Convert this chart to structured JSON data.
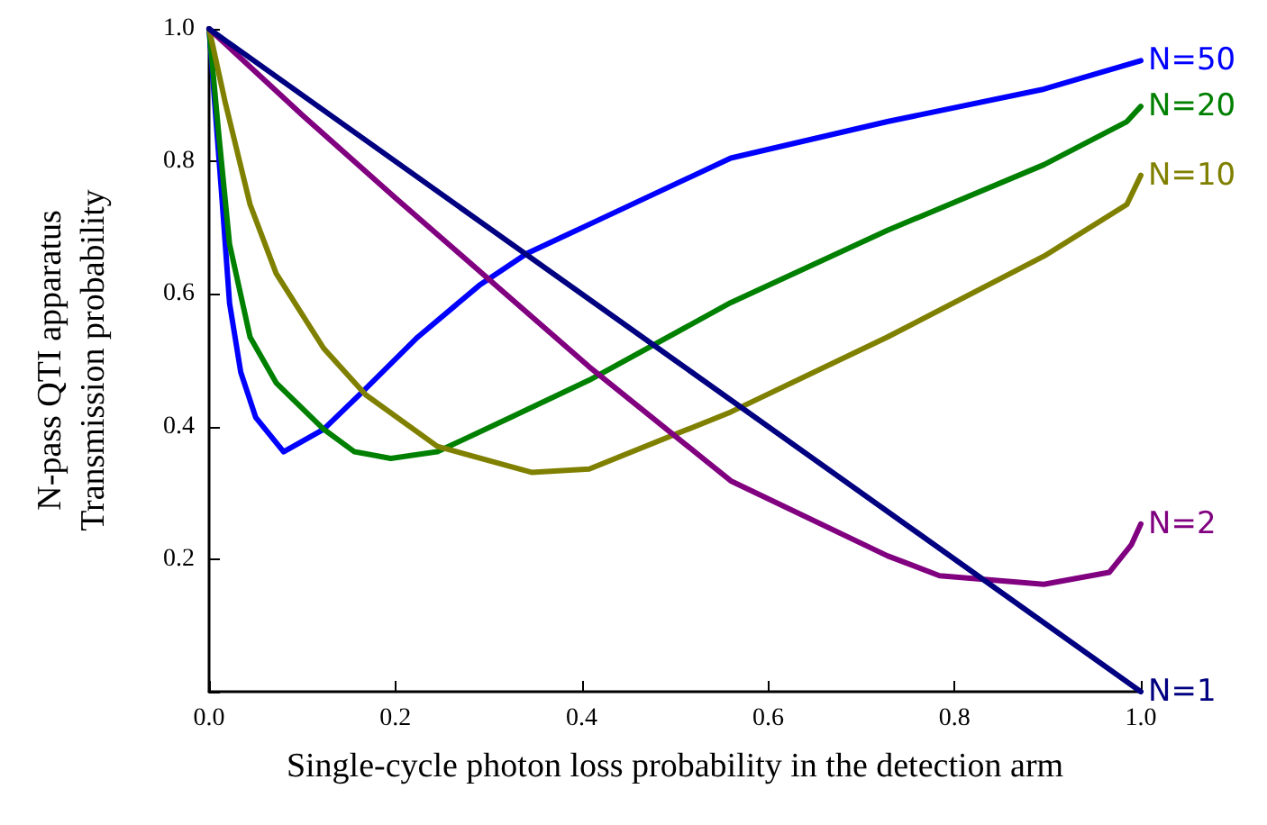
{
  "chart_data": {
    "type": "line",
    "xlabel": "Single-cycle photon loss probability in the detection arm",
    "ylabel": "N-pass QTI apparatus\nTransmission probability",
    "xlim": [
      0,
      1
    ],
    "ylim": [
      0,
      1
    ],
    "xticks": [
      {
        "value": 0,
        "label": "0.0"
      },
      0.2,
      0.4,
      0.6,
      0.8,
      {
        "value": 1,
        "label": "1.0"
      }
    ],
    "yticks": [
      {
        "value": 0,
        "label": null
      },
      0.2,
      0.4,
      0.6,
      0.8,
      {
        "value": 1,
        "label": "1.0"
      }
    ],
    "grid": false,
    "legend": false,
    "marker": "none",
    "line_style": "solid",
    "series": [
      {
        "name": "N=50",
        "color": "#0000ff",
        "x": [
          0,
          0.013,
          0.022,
          0.034,
          0.05,
          0.08,
          0.123,
          0.168,
          0.224,
          0.29,
          0.341,
          0.408,
          0.56,
          0.728,
          0.896,
          1
        ],
        "values": [
          1,
          0.76,
          0.586,
          0.482,
          0.414,
          0.362,
          0.396,
          0.457,
          0.535,
          0.613,
          0.661,
          0.705,
          0.805,
          0.86,
          0.909,
          0.952
        ]
      },
      {
        "name": "N=20",
        "color": "#008000",
        "x": [
          0,
          0.01,
          0.022,
          0.044,
          0.072,
          0.123,
          0.156,
          0.195,
          0.245,
          0.324,
          0.408,
          0.56,
          0.728,
          0.896,
          0.985,
          1
        ],
        "values": [
          1,
          0.847,
          0.675,
          0.535,
          0.466,
          0.396,
          0.362,
          0.352,
          0.362,
          0.414,
          0.47,
          0.587,
          0.696,
          0.795,
          0.86,
          0.883
        ]
      },
      {
        "name": "N=10",
        "color": "#808000",
        "x": [
          0,
          0.017,
          0.044,
          0.072,
          0.123,
          0.168,
          0.245,
          0.346,
          0.408,
          0.56,
          0.728,
          0.896,
          0.985,
          1
        ],
        "values": [
          1,
          0.891,
          0.735,
          0.631,
          0.518,
          0.448,
          0.37,
          0.331,
          0.336,
          0.422,
          0.535,
          0.657,
          0.735,
          0.779
        ]
      },
      {
        "name": "N=2",
        "color": "#800080",
        "x": [
          0,
          0.1,
          0.2,
          0.408,
          0.56,
          0.728,
          0.784,
          0.896,
          0.966,
          0.99,
          1
        ],
        "values": [
          1,
          0.87,
          0.745,
          0.49,
          0.318,
          0.205,
          0.175,
          0.162,
          0.18,
          0.222,
          0.253
        ]
      },
      {
        "name": "N=1",
        "color": "#000080",
        "x": [
          0,
          0.5,
          1
        ],
        "values": [
          1,
          0.5,
          0
        ]
      }
    ]
  }
}
